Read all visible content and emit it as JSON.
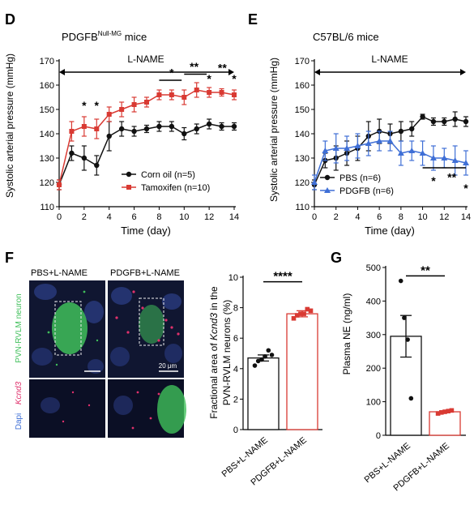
{
  "panels": {
    "D": {
      "letter": "D",
      "title_main": "PDGFB",
      "title_sup": "Null-MG",
      "title_suffix": " mice",
      "ylabel": "Systolic arterial pressure (mmHg)",
      "xlabel": "Time (day)",
      "treatment": "L-NAME",
      "legend": [
        "Corn oil (n=5)",
        "Tamoxifen (n=10)"
      ],
      "sig_marks": [
        "*",
        "*",
        "*",
        "**",
        "*",
        "**",
        "*"
      ]
    },
    "E": {
      "letter": "E",
      "title": "C57BL/6 mice",
      "ylabel": "Systolic arterial pressure (mmHg)",
      "xlabel": "Time (day)",
      "treatment": "L-NAME",
      "legend": [
        "PBS (n=6)",
        "PDGFB (n=6)"
      ],
      "sig_marks": [
        "*",
        "**",
        "*"
      ]
    },
    "F": {
      "letter": "F",
      "col_labels": [
        "PBS+L-NAME",
        "PDGFB+L-NAME"
      ],
      "channel_top": "PVN-RVLM neuron",
      "channel_bottom_a": "Dapi",
      "channel_bottom_b": "Kcnd3",
      "scale_bar": "20 μm",
      "ylabel_line1a": "Fractional area of ",
      "ylabel_line1b": "Kcnd3",
      "ylabel_line1c": " in the",
      "ylabel_line2": "PVN-RVLM neurons (%)",
      "sig": "****"
    },
    "G": {
      "letter": "G",
      "ylabel": "Plasma NE (ng/ml)",
      "sig": "**"
    }
  },
  "colors": {
    "black": "#111111",
    "red": "#d93a33",
    "blue": "#3f6fd6",
    "green": "#3fbf5a",
    "magenta": "#e0316c",
    "dapi": "#24336f"
  },
  "chart_data": [
    {
      "type": "line",
      "panel": "D",
      "x": [
        0,
        1,
        2,
        3,
        4,
        5,
        6,
        7,
        8,
        9,
        10,
        11,
        12,
        13,
        14
      ],
      "xlim": [
        0,
        14
      ],
      "ylim": [
        110,
        170
      ],
      "xticks": [
        0,
        2,
        4,
        6,
        8,
        10,
        12,
        14
      ],
      "yticks": [
        110,
        120,
        130,
        140,
        150,
        160,
        170
      ],
      "xlabel": "Time (day)",
      "ylabel": "Systolic arterial pressure (mmHg)",
      "legend_position": "bottom-right",
      "series": [
        {
          "name": "Corn oil (n=5)",
          "color": "black",
          "marker": "circle",
          "values": [
            119,
            132,
            130,
            127,
            139,
            142,
            141,
            142,
            143,
            143,
            140,
            142,
            144,
            143,
            143
          ],
          "errors": [
            2,
            3,
            5,
            4,
            6,
            3,
            2,
            1.5,
            2,
            2,
            2.5,
            2,
            2,
            1.5,
            1.5
          ]
        },
        {
          "name": "Tamoxifen (n=10)",
          "color": "red",
          "marker": "square",
          "values": [
            119,
            141,
            143,
            142,
            148,
            150,
            152,
            153,
            156,
            156,
            155,
            158,
            157,
            157,
            156
          ],
          "errors": [
            2,
            4,
            4,
            4,
            3,
            3,
            3,
            2,
            2,
            2,
            3,
            3,
            2,
            1.5,
            2
          ]
        }
      ]
    },
    {
      "type": "line",
      "panel": "E",
      "x": [
        0,
        1,
        2,
        3,
        4,
        5,
        6,
        7,
        8,
        9,
        10,
        11,
        12,
        13,
        14
      ],
      "xlim": [
        0,
        14
      ],
      "ylim": [
        110,
        170
      ],
      "xticks": [
        0,
        2,
        4,
        6,
        8,
        10,
        12,
        14
      ],
      "yticks": [
        110,
        120,
        130,
        140,
        150,
        160,
        170
      ],
      "xlabel": "Time (day)",
      "ylabel": "Systolic arterial pressure (mmHg)",
      "legend_position": "bottom-left",
      "series": [
        {
          "name": "PBS (n=6)",
          "color": "black",
          "marker": "circle",
          "values": [
            119,
            129,
            130,
            132,
            134,
            139,
            141,
            140,
            141,
            142,
            147,
            145,
            145,
            146,
            145
          ],
          "errors": [
            2,
            3,
            5,
            5,
            5,
            6,
            5,
            4,
            4,
            3,
            1,
            1.5,
            1.5,
            3,
            2
          ]
        },
        {
          "name": "PDGFB (n=6)",
          "color": "blue",
          "marker": "triangle",
          "values": [
            120,
            133,
            134,
            134,
            135,
            136,
            137,
            137,
            132,
            133,
            132,
            130,
            130,
            129,
            128
          ],
          "errors": [
            3,
            4,
            6,
            5,
            5,
            5,
            4,
            4,
            5,
            4,
            5,
            5,
            4,
            6,
            5
          ]
        }
      ]
    },
    {
      "type": "bar",
      "panel": "F",
      "categories": [
        "PBS+L-NAME",
        "PDGFB+L-NAME"
      ],
      "values": [
        4.7,
        7.6
      ],
      "errors": [
        0.2,
        0.2
      ],
      "ylim": [
        0,
        10
      ],
      "yticks": [
        0,
        2,
        4,
        6,
        8,
        10
      ],
      "points": [
        [
          4.2,
          4.5,
          4.6,
          4.8,
          5.2,
          4.9
        ],
        [
          7.3,
          7.5,
          7.6,
          7.6,
          7.9,
          7.8
        ]
      ],
      "colors": [
        "black",
        "red"
      ]
    },
    {
      "type": "bar",
      "panel": "G",
      "categories": [
        "PBS+L-NAME",
        "PDGFB+L-NAME"
      ],
      "values": [
        295,
        70
      ],
      "errors": [
        62,
        3
      ],
      "ylim": [
        0,
        500
      ],
      "yticks": [
        0,
        100,
        200,
        300,
        400,
        500
      ],
      "points": [
        [
          460,
          350,
          285,
          110
        ],
        [
          65,
          68,
          70,
          72,
          74
        ]
      ],
      "colors": [
        "black",
        "red"
      ]
    }
  ]
}
